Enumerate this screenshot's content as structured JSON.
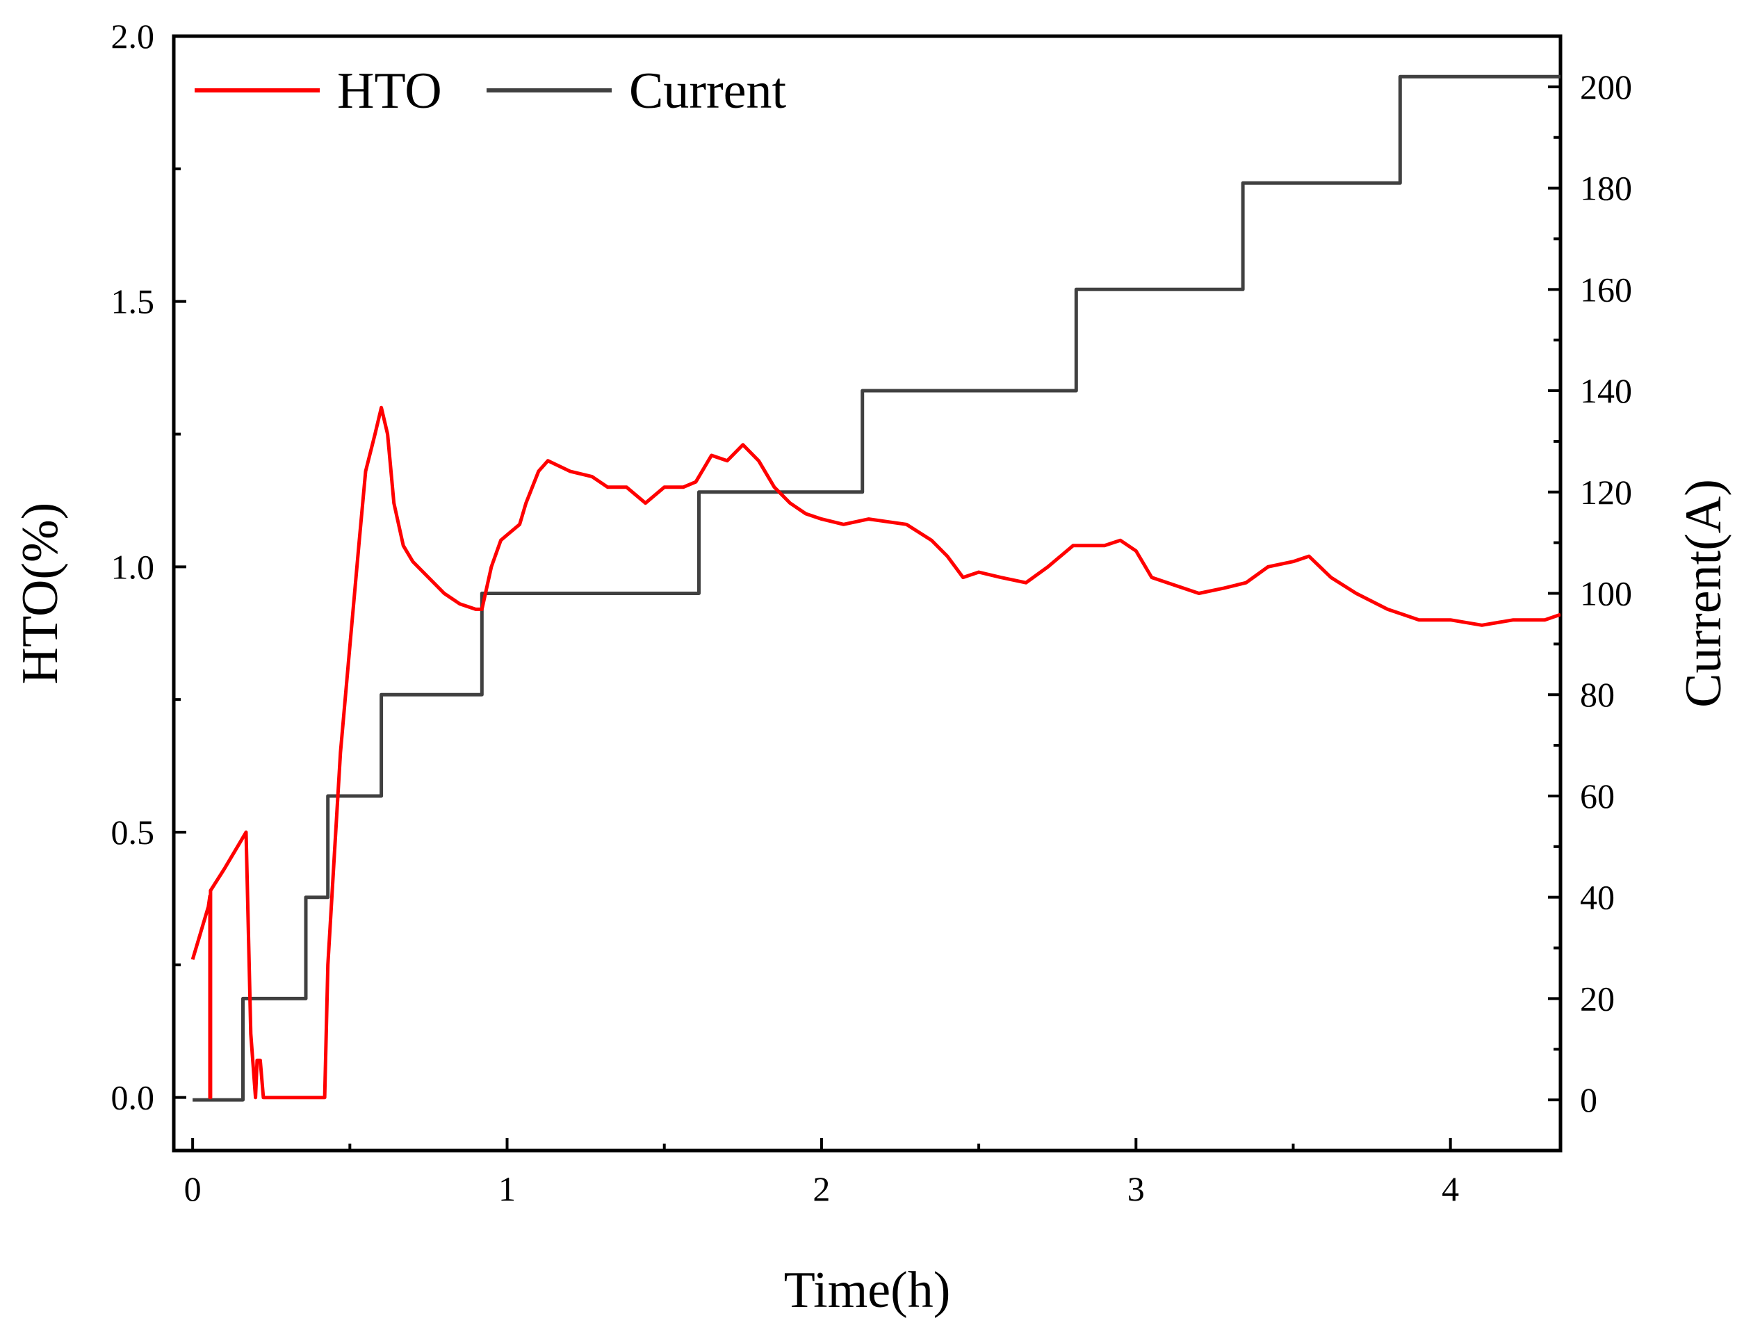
{
  "chart_data": {
    "type": "line",
    "title": "",
    "xlabel": "Time(h)",
    "ylabel": "HTO(%)",
    "y2label": "Current(A)",
    "xlim": [
      -0.06,
      4.35
    ],
    "ylim": [
      -0.1,
      2.0
    ],
    "y2lim": [
      -10,
      210
    ],
    "xticks": [
      0,
      1,
      2,
      3,
      4
    ],
    "yticks": [
      0.0,
      0.5,
      1.0,
      1.5,
      2.0
    ],
    "y2ticks": [
      0,
      20,
      40,
      60,
      80,
      100,
      120,
      140,
      160,
      180,
      200
    ],
    "x_minor_ticks": [
      0.5,
      1.5,
      2.5,
      3.5
    ],
    "y_minor_ticks": [
      0.25,
      0.75,
      1.25,
      1.75
    ],
    "grid": false,
    "legend": {
      "position": "top-left",
      "orientation": "horizontal"
    },
    "series": [
      {
        "name": "HTO",
        "axis": "left",
        "color": "#ff0000",
        "x": [
          0.0,
          0.02,
          0.05,
          0.055,
          0.055,
          0.057,
          0.057,
          0.1,
          0.15,
          0.17,
          0.185,
          0.2,
          0.205,
          0.215,
          0.225,
          0.23,
          0.3,
          0.42,
          0.43,
          0.45,
          0.47,
          0.5,
          0.53,
          0.55,
          0.58,
          0.6,
          0.62,
          0.64,
          0.67,
          0.7,
          0.75,
          0.8,
          0.85,
          0.9,
          0.92,
          0.95,
          0.98,
          1.0,
          1.04,
          1.06,
          1.1,
          1.13,
          1.2,
          1.27,
          1.32,
          1.38,
          1.44,
          1.5,
          1.56,
          1.6,
          1.65,
          1.7,
          1.75,
          1.8,
          1.85,
          1.9,
          1.95,
          2.0,
          2.07,
          2.15,
          2.27,
          2.35,
          2.4,
          2.45,
          2.5,
          2.57,
          2.65,
          2.72,
          2.8,
          2.9,
          2.95,
          3.0,
          3.05,
          3.1,
          3.2,
          3.28,
          3.35,
          3.42,
          3.5,
          3.55,
          3.62,
          3.7,
          3.8,
          3.85,
          3.9,
          4.0,
          4.1,
          4.2,
          4.3,
          4.35
        ],
        "values": [
          0.26,
          0.3,
          0.36,
          0.38,
          0.0,
          0.0,
          0.39,
          0.43,
          0.48,
          0.5,
          0.12,
          0.0,
          0.07,
          0.07,
          0.0,
          0.0,
          0.0,
          0.0,
          0.25,
          0.45,
          0.65,
          0.85,
          1.05,
          1.18,
          1.25,
          1.3,
          1.25,
          1.12,
          1.04,
          1.01,
          0.98,
          0.95,
          0.93,
          0.92,
          0.92,
          1.0,
          1.05,
          1.06,
          1.08,
          1.12,
          1.18,
          1.2,
          1.18,
          1.17,
          1.15,
          1.15,
          1.12,
          1.15,
          1.15,
          1.16,
          1.21,
          1.2,
          1.23,
          1.2,
          1.15,
          1.12,
          1.1,
          1.09,
          1.08,
          1.09,
          1.08,
          1.05,
          1.02,
          0.98,
          0.99,
          0.98,
          0.97,
          1.0,
          1.04,
          1.04,
          1.05,
          1.03,
          0.98,
          0.97,
          0.95,
          0.96,
          0.97,
          1.0,
          1.01,
          1.02,
          0.98,
          0.95,
          0.92,
          0.91,
          0.9,
          0.9,
          0.89,
          0.9,
          0.9,
          0.91
        ]
      },
      {
        "name": "Current",
        "axis": "right",
        "color": "#404040",
        "x": [
          0.0,
          0.16,
          0.16,
          0.36,
          0.36,
          0.43,
          0.43,
          0.6,
          0.6,
          0.92,
          0.92,
          1.61,
          1.61,
          2.13,
          2.13,
          2.81,
          2.81,
          3.34,
          3.34,
          3.84,
          3.84,
          4.35
        ],
        "values": [
          0,
          0,
          20,
          20,
          40,
          40,
          60,
          60,
          80,
          80,
          100,
          100,
          120,
          120,
          140,
          140,
          160,
          160,
          181,
          181,
          202,
          202
        ]
      }
    ]
  }
}
